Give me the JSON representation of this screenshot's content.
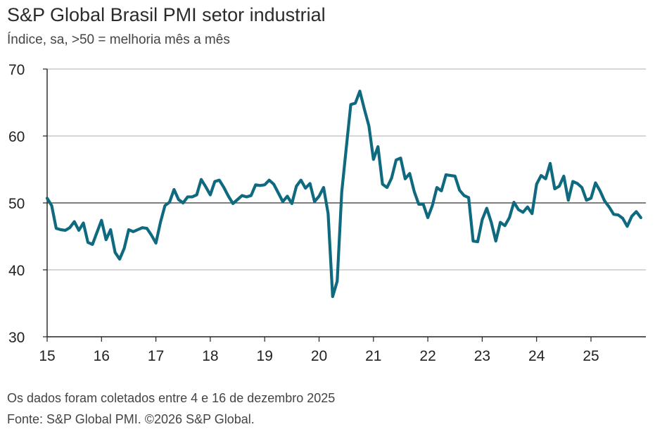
{
  "header": {
    "title": "S&P Global Brasil PMI setor industrial",
    "subtitle": "Índice, sa, >50 = melhoria mês a mês"
  },
  "footer": {
    "note": "Os dados foram coletados entre 4 e 16 de dezembro 2025",
    "source": "Fonte: S&P Global PMI. ©2026 S&P Global."
  },
  "colors": {
    "line": "#0f6a80",
    "grid": "#bdbdbd",
    "reference_line": "#555555",
    "axis": "#222222"
  },
  "chart_data": {
    "type": "line",
    "title": "S&P Global Brasil PMI setor industrial",
    "subtitle": "Índice, sa, >50 = melhoria mês a mês",
    "xlabel": "",
    "ylabel": "",
    "ylim": [
      30,
      70
    ],
    "yticks": [
      "30",
      "40",
      "50",
      "60",
      "70"
    ],
    "xticks": [
      "15",
      "16",
      "17",
      "18",
      "19",
      "20",
      "21",
      "22",
      "23",
      "24",
      "25"
    ],
    "x_start_year": 15,
    "reference_value": 50,
    "grid": true,
    "legend": "none",
    "series": [
      {
        "values": [
          50.7,
          49.6,
          46.2,
          46.0,
          45.9,
          46.3,
          47.2,
          45.9,
          47.0,
          44.1,
          43.8,
          45.6,
          47.4,
          44.5,
          46.0,
          42.6,
          41.6,
          43.2,
          46.0,
          45.7,
          46.0,
          46.3,
          46.2,
          45.2,
          44.0,
          47.1,
          49.6,
          50.1,
          52.0,
          50.5,
          50.0,
          50.9,
          50.9,
          51.2,
          53.5,
          52.4,
          51.2,
          53.2,
          53.4,
          52.3,
          51.0,
          49.9,
          50.5,
          51.1,
          50.9,
          51.1,
          52.7,
          52.6,
          52.7,
          53.4,
          52.8,
          51.5,
          50.2,
          51.0,
          49.9,
          52.5,
          53.4,
          52.2,
          52.9,
          50.2,
          51.0,
          52.3,
          48.4,
          36.0,
          38.3,
          51.6,
          58.2,
          64.7,
          64.9,
          66.7,
          64.0,
          61.5,
          56.5,
          58.4,
          52.8,
          52.3,
          53.7,
          56.4,
          56.7,
          53.6,
          54.4,
          51.7,
          49.8,
          49.8,
          47.8,
          49.6,
          52.3,
          51.8,
          54.2,
          54.1,
          54.0,
          51.9,
          51.1,
          50.8,
          44.3,
          44.2,
          47.5,
          49.2,
          47.1,
          44.3,
          47.1,
          46.6,
          47.8,
          50.1,
          49.0,
          48.6,
          49.4,
          48.4,
          52.8,
          54.1,
          53.6,
          55.9,
          52.1,
          52.5,
          54.0,
          50.4,
          53.2,
          52.9,
          52.3,
          50.4,
          50.7,
          53.0,
          51.8,
          50.3,
          49.4,
          48.3,
          48.2,
          47.7,
          46.5,
          48.0,
          48.7,
          47.8
        ]
      }
    ]
  }
}
